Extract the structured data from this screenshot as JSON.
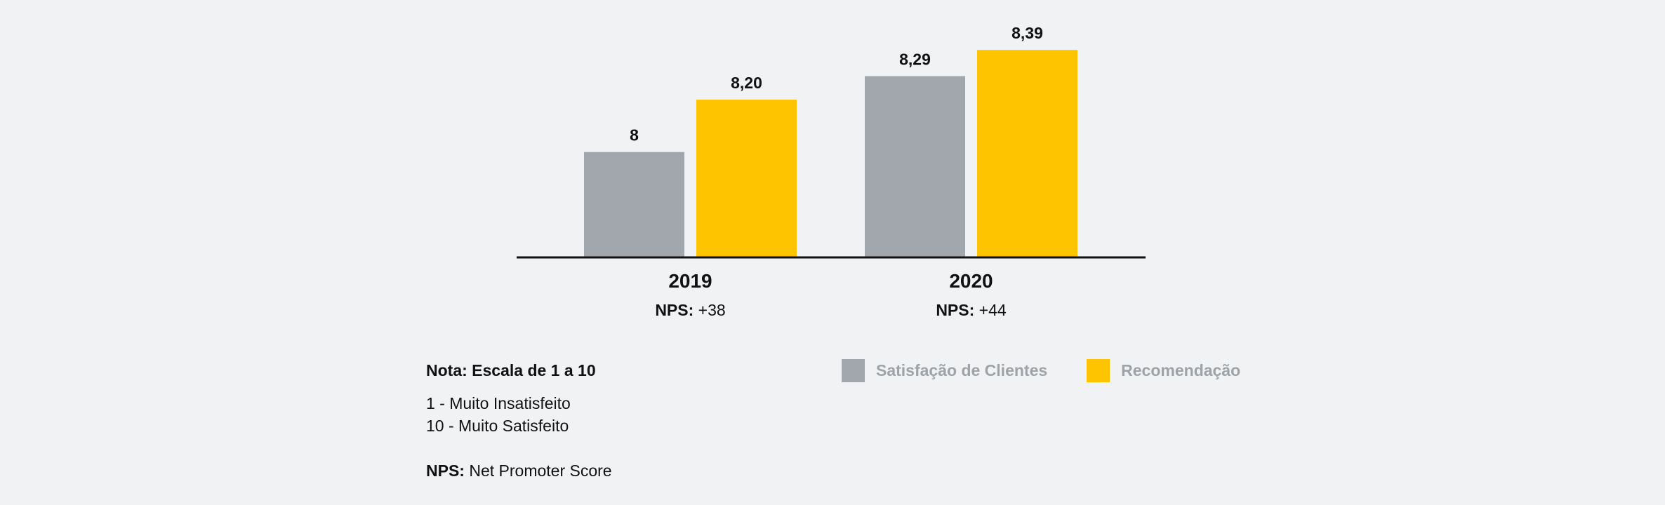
{
  "chart_data": {
    "type": "bar",
    "categories": [
      "2019",
      "2020"
    ],
    "category_notes": [
      {
        "label": "NPS:",
        "value": "+38"
      },
      {
        "label": "NPS:",
        "value": "+44"
      }
    ],
    "series": [
      {
        "name": "Satisfação de Clientes",
        "values": [
          8.0,
          8.29
        ],
        "value_labels": [
          "8",
          "8,29"
        ],
        "color": "#a1a7ad"
      },
      {
        "name": "Recomendação",
        "values": [
          8.2,
          8.39
        ],
        "value_labels": [
          "8,20",
          "8,39"
        ],
        "color": "#ffc400"
      }
    ],
    "ylim": [
      7.6,
      8.42
    ],
    "grid": false,
    "legend_position": "bottom"
  },
  "notes": {
    "title": "Nota: Escala de 1 a 10",
    "line1": "1 - Muito Insatisfeito",
    "line2": "10 - Muito Satisfeito",
    "nps_label": "NPS:",
    "nps_text": "Net Promoter Score"
  }
}
